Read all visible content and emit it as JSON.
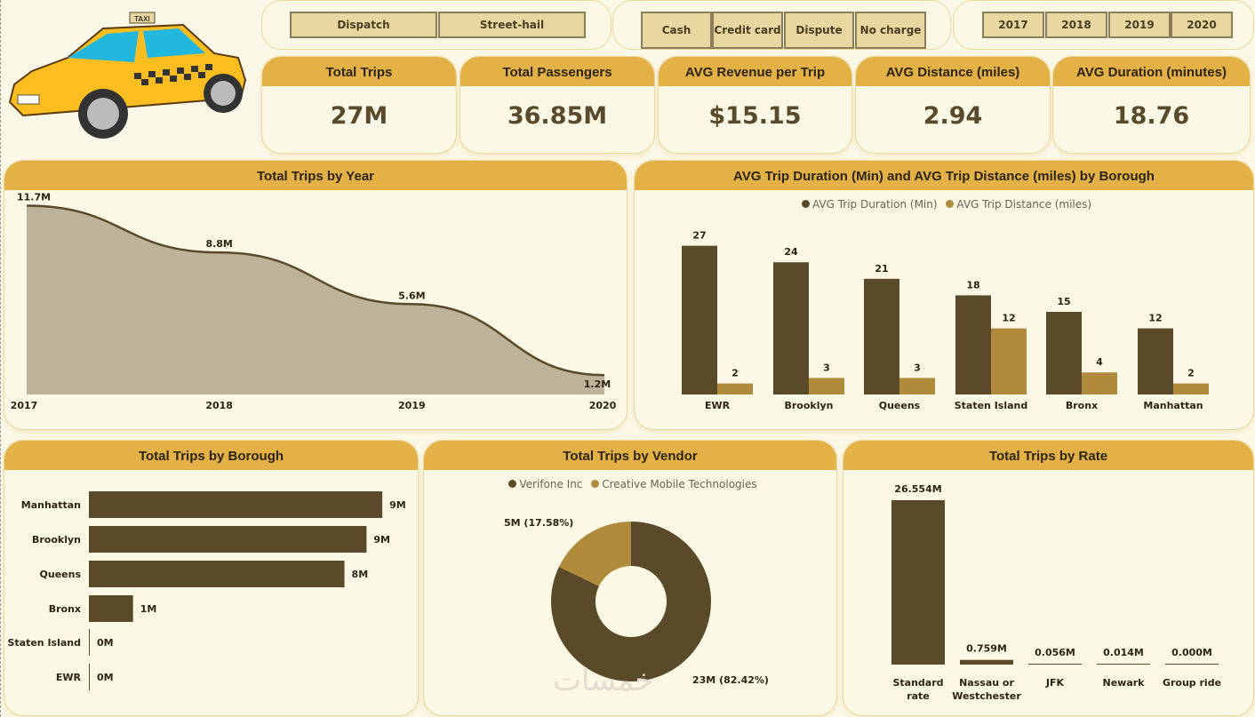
{
  "logo": {
    "taxi_sign": "TAXI"
  },
  "slicers": {
    "trip_type": [
      "Dispatch",
      "Street-hail"
    ],
    "payment_type": [
      "Cash",
      "Credit card",
      "Dispute",
      "No charge"
    ],
    "year": [
      "2017",
      "2018",
      "2019",
      "2020"
    ]
  },
  "kpis": [
    {
      "title": "Total Trips",
      "value": "27M"
    },
    {
      "title": "Total Passengers",
      "value": "36.85M"
    },
    {
      "title": "AVG Revenue per Trip",
      "value": "$15.15"
    },
    {
      "title": "AVG Distance (miles)",
      "value": "2.94"
    },
    {
      "title": "AVG Duration (minutes)",
      "value": "18.76"
    }
  ],
  "colors": {
    "dark": "#5b4a2a",
    "light": "#b08b3c",
    "header": "#e3b145",
    "area": "#bcb39a"
  },
  "watermark": "خمسات",
  "chart_data": [
    {
      "type": "area",
      "title": "Total Trips by Year",
      "categories": [
        "2017",
        "2018",
        "2019",
        "2020"
      ],
      "values": [
        11.7,
        8.8,
        5.6,
        1.2
      ],
      "labels": [
        "11.7M",
        "8.8M",
        "5.6M",
        "1.2M"
      ],
      "ylim": [
        0,
        12
      ]
    },
    {
      "type": "bar",
      "title": "AVG Trip Duration (Min) and AVG Trip Distance (miles) by Borough",
      "categories": [
        "EWR",
        "Brooklyn",
        "Queens",
        "Staten Island",
        "Bronx",
        "Manhattan"
      ],
      "legend": "top",
      "series": [
        {
          "name": "AVG Trip Duration (Min)",
          "values": [
            27,
            24,
            21,
            18,
            15,
            12
          ]
        },
        {
          "name": "AVG Trip Distance (miles)",
          "values": [
            2,
            3,
            3,
            12,
            4,
            2
          ]
        }
      ]
    },
    {
      "type": "bar",
      "orientation": "horizontal",
      "title": "Total Trips by Borough",
      "categories": [
        "Manhattan",
        "Brooklyn",
        "Queens",
        "Bronx",
        "Staten Island",
        "EWR"
      ],
      "values": [
        9.3,
        8.8,
        8.1,
        1.4,
        0.01,
        0.005
      ],
      "labels": [
        "9M",
        "9M",
        "8M",
        "1M",
        "0M",
        "0M"
      ]
    },
    {
      "type": "pie",
      "donut": true,
      "title": "Total Trips by Vendor",
      "legend": "top",
      "slices": [
        {
          "name": "Verifone Inc",
          "value": 23,
          "percent": 82.42,
          "label": "23M (82.42%)"
        },
        {
          "name": "Creative Mobile Technologies",
          "value": 5,
          "percent": 17.58,
          "label": "5M (17.58%)"
        }
      ]
    },
    {
      "type": "bar",
      "title": "Total Trips by Rate",
      "categories": [
        "Standard rate",
        "Nassau or Westchester",
        "JFK",
        "Newark",
        "Group ride"
      ],
      "values": [
        26.554,
        0.759,
        0.056,
        0.014,
        0.0
      ],
      "labels": [
        "26.554M",
        "0.759M",
        "0.056M",
        "0.014M",
        "0.000M"
      ]
    }
  ]
}
